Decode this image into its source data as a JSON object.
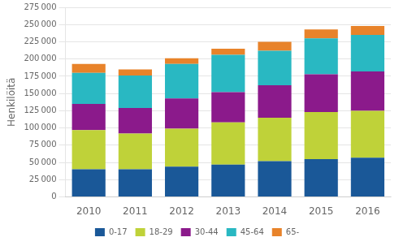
{
  "chart_data": {
    "type": "bar",
    "stacked": true,
    "categories": [
      "2010",
      "2011",
      "2012",
      "2013",
      "2014",
      "2015",
      "2016"
    ],
    "series": [
      {
        "name": "0-17",
        "color": "#1a5898",
        "values": [
          40000,
          40000,
          44000,
          47000,
          52000,
          55000,
          57000
        ]
      },
      {
        "name": "18-29",
        "color": "#bfd239",
        "values": [
          57000,
          52000,
          55000,
          61000,
          63000,
          68000,
          68000
        ]
      },
      {
        "name": "30-44",
        "color": "#8b1a8b",
        "values": [
          38000,
          37000,
          44000,
          44000,
          47000,
          55000,
          57000
        ]
      },
      {
        "name": "45-64",
        "color": "#29b8c2",
        "values": [
          45000,
          47000,
          50000,
          54000,
          50000,
          52000,
          53000
        ]
      },
      {
        "name": "65-",
        "color": "#e8832a",
        "values": [
          13000,
          9000,
          8000,
          9000,
          13000,
          13000,
          13000
        ]
      }
    ],
    "ylabel": "Henkilöitä",
    "ylim": [
      0,
      275000
    ],
    "yticks": [
      0,
      {
        "value": 25000,
        "label": "25 000"
      },
      {
        "value": 50000,
        "label": "50 000"
      },
      {
        "value": 75000,
        "label": "75 000"
      },
      {
        "value": 100000,
        "label": "100 000"
      },
      {
        "value": 125000,
        "label": "125 000"
      },
      {
        "value": 150000,
        "label": "150 000"
      },
      {
        "value": 175000,
        "label": "175 000"
      },
      {
        "value": 200000,
        "label": "200 000"
      },
      {
        "value": 225000,
        "label": "225 000"
      },
      {
        "value": 250000,
        "label": "250 000"
      },
      {
        "value": 275000,
        "label": "275 000"
      }
    ],
    "grid": true,
    "legend": "bottom"
  }
}
